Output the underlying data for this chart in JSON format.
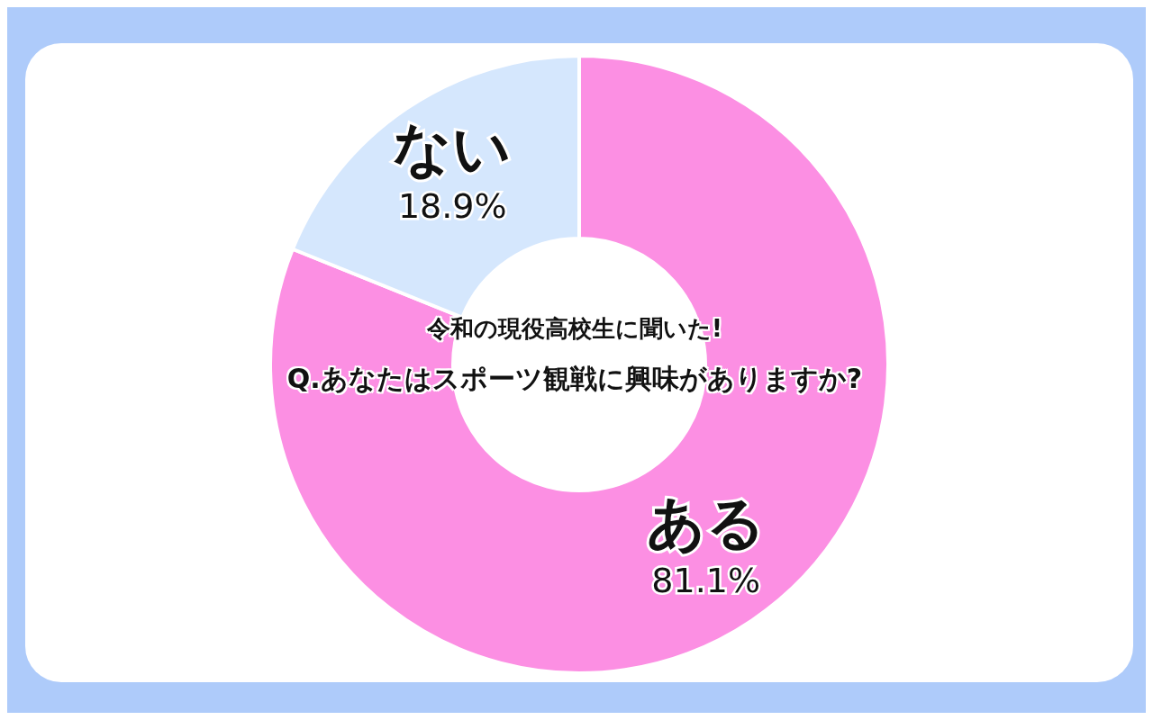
{
  "chart_data": {
    "type": "donut",
    "title": "令和の現役高校生に聞いた!",
    "subtitle": "Q.あなたはスポーツ観戦に興味がありますか?",
    "categories": [
      "ある",
      "ない"
    ],
    "values": [
      81.1,
      18.9
    ],
    "colors": [
      "#fc8fe3",
      "#d5e7fd"
    ],
    "value_labels": [
      "81.1%",
      "18.9%"
    ]
  }
}
